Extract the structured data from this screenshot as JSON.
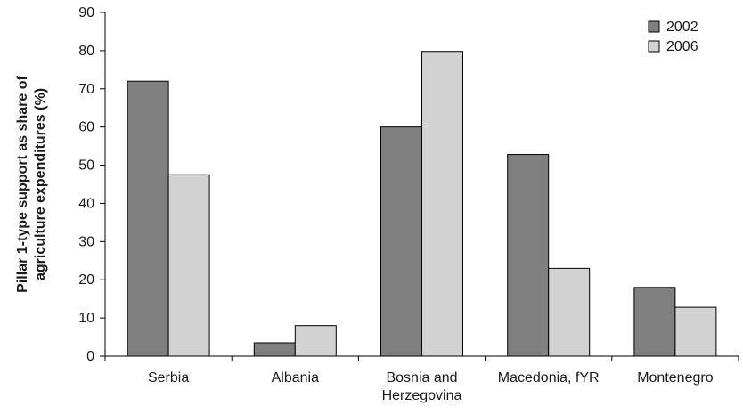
{
  "chart_data": {
    "type": "bar",
    "title": "",
    "xlabel": "",
    "ylabel_lines": [
      "Pillar 1-type support as share of",
      "agriculture expenditures (%)"
    ],
    "categories": [
      [
        "Serbia"
      ],
      [
        "Albania"
      ],
      [
        "Bosnia and",
        "Herzegovina"
      ],
      [
        "Macedonia, fYR"
      ],
      [
        "Montenegro"
      ]
    ],
    "series": [
      {
        "name": "2002",
        "color": "#808080",
        "values": [
          72,
          3.5,
          60,
          52.8,
          18
        ]
      },
      {
        "name": "2006",
        "color": "#d2d2d2",
        "values": [
          47.5,
          8,
          79.8,
          23,
          12.8
        ]
      }
    ],
    "ylim": [
      0,
      90
    ],
    "yticks": [
      0,
      10,
      20,
      30,
      40,
      50,
      60,
      70,
      80,
      90
    ],
    "grid": false,
    "legend_position": "top-right"
  }
}
